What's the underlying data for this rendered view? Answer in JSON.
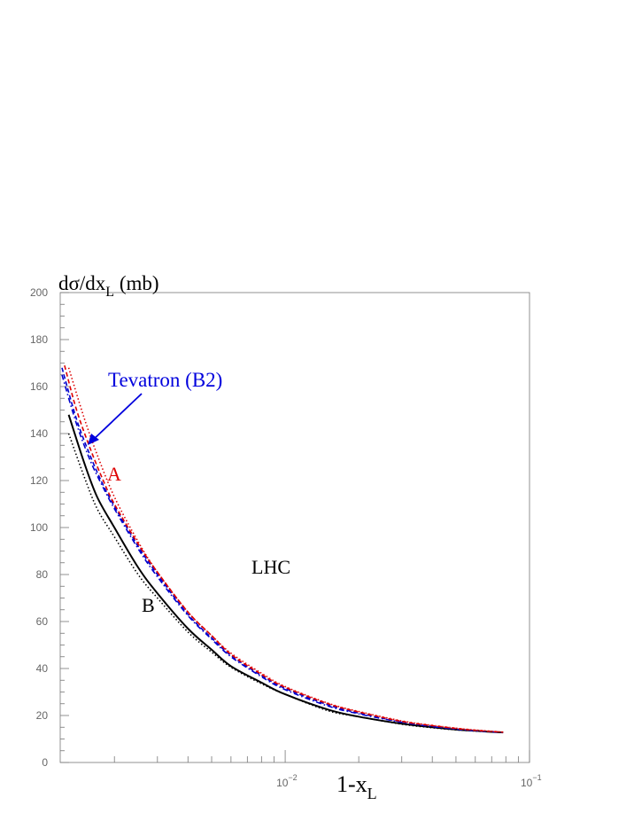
{
  "chart_data": {
    "type": "line",
    "x_scale": "log",
    "xlim": [
      0.0012,
      0.1
    ],
    "ylim": [
      0,
      200
    ],
    "ylabel": {
      "main": "dσ/dx",
      "sub": "L",
      "unit": " (mb)"
    },
    "xlabel": {
      "main": "1-x",
      "sub": "L"
    },
    "y_ticks": [
      0,
      20,
      40,
      60,
      80,
      100,
      120,
      140,
      160,
      180,
      200
    ],
    "x_tick_labels": [
      {
        "value": 0.01,
        "base": "10",
        "exp": "−2"
      },
      {
        "value": 0.1,
        "base": "10",
        "exp": "−1"
      }
    ],
    "annotations": {
      "tevatron": "Tevatron (B2)",
      "a": "A",
      "b": "B",
      "lhc": "LHC"
    },
    "series": [
      {
        "style": "solid",
        "color": "#000000",
        "x": [
          0.0013,
          0.0015,
          0.0017,
          0.002,
          0.0025,
          0.003,
          0.004,
          0.005,
          0.006,
          0.008,
          0.01,
          0.015,
          0.02,
          0.03,
          0.04,
          0.05,
          0.06,
          0.07,
          0.078
        ],
        "y": [
          148,
          128,
          113,
          100,
          83,
          72,
          57,
          48,
          41,
          34,
          29,
          22.5,
          19.5,
          16.5,
          15,
          14,
          13.5,
          13,
          12.8
        ]
      },
      {
        "style": "dotted",
        "color": "#000000",
        "x": [
          0.0013,
          0.0015,
          0.0017,
          0.002,
          0.0025,
          0.003,
          0.004,
          0.005,
          0.006,
          0.008,
          0.01,
          0.015,
          0.02,
          0.03,
          0.04,
          0.05,
          0.06,
          0.07,
          0.078
        ],
        "y": [
          140,
          122,
          108,
          96,
          80,
          70,
          55.5,
          47,
          40.5,
          33.5,
          29,
          22,
          19.5,
          16.3,
          14.8,
          13.9,
          13.4,
          13,
          12.8
        ]
      },
      {
        "style": "dashed",
        "color": "#0000cc",
        "x": [
          0.00122,
          0.0014,
          0.0016,
          0.0018,
          0.002,
          0.0025,
          0.003,
          0.004,
          0.005,
          0.006,
          0.008,
          0.01,
          0.015,
          0.02,
          0.03,
          0.04,
          0.05,
          0.06,
          0.07,
          0.078
        ],
        "y": [
          168,
          146,
          130,
          118,
          109,
          92,
          80,
          63,
          53,
          45.5,
          37,
          31.5,
          24.5,
          21,
          17.3,
          15.5,
          14.3,
          13.6,
          13.1,
          12.8
        ]
      },
      {
        "style": "dashdot",
        "color": "#0000cc",
        "x": [
          0.00122,
          0.0014,
          0.0016,
          0.0018,
          0.002,
          0.0025,
          0.003,
          0.004,
          0.005,
          0.006,
          0.008,
          0.01,
          0.015,
          0.02,
          0.03,
          0.04,
          0.05,
          0.06,
          0.07,
          0.078
        ],
        "y": [
          165,
          144,
          128,
          117,
          108,
          91,
          79,
          62.5,
          52.5,
          45,
          36.5,
          31,
          24,
          20.7,
          17.1,
          15.3,
          14.2,
          13.5,
          13.1,
          12.8
        ]
      },
      {
        "style": "dashed",
        "color": "#dd0000",
        "x": [
          0.00125,
          0.0014,
          0.0016,
          0.0018,
          0.002,
          0.0025,
          0.003,
          0.004,
          0.005,
          0.006,
          0.008,
          0.01,
          0.015,
          0.02,
          0.03,
          0.04,
          0.05,
          0.06,
          0.07,
          0.078
        ],
        "y": [
          169,
          150,
          133,
          120,
          110,
          93,
          81,
          64,
          54,
          46,
          37.5,
          32,
          25,
          21.5,
          17.5,
          15.7,
          14.5,
          13.7,
          13.2,
          12.9
        ]
      },
      {
        "style": "dotted",
        "color": "#dd0000",
        "x": [
          0.0013,
          0.0015,
          0.0017,
          0.002,
          0.0025,
          0.003,
          0.004,
          0.005,
          0.006,
          0.008,
          0.01,
          0.015,
          0.02,
          0.03,
          0.04,
          0.05,
          0.06,
          0.07,
          0.078
        ],
        "y": [
          168,
          147,
          131,
          113,
          94,
          81,
          64,
          54,
          46.5,
          38,
          32.3,
          25.2,
          21.7,
          17.7,
          15.8,
          14.6,
          13.8,
          13.3,
          12.9
        ]
      }
    ]
  }
}
